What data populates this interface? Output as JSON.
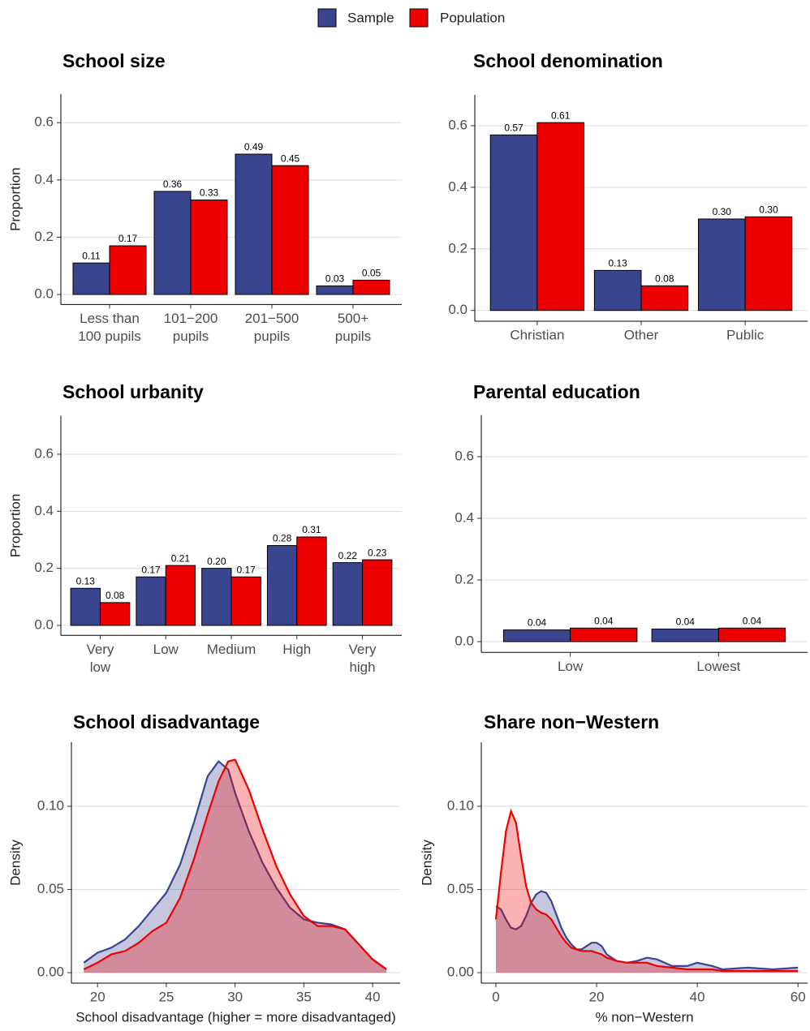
{
  "chart_data": [
    {
      "type": "bar",
      "title": "School size",
      "ylabel": "Proportion",
      "categories": [
        [
          "Less than",
          "100 pupils"
        ],
        [
          "101−200",
          "pupils"
        ],
        [
          "201−500",
          "pupils"
        ],
        [
          "500+",
          "pupils"
        ]
      ],
      "series": [
        {
          "name": "Sample",
          "color": "#3A4590",
          "values": [
            0.11,
            0.36,
            0.49,
            0.03
          ],
          "value_labels": [
            "0.11",
            "0.36",
            "0.49",
            "0.03"
          ]
        },
        {
          "name": "Population",
          "color": "#EE0000",
          "values": [
            0.17,
            0.33,
            0.45,
            0.05
          ],
          "value_labels": [
            "0.17",
            "0.33",
            "0.45",
            "0.05"
          ]
        }
      ],
      "ylim": [
        -0.035,
        0.7
      ],
      "yticks": [
        {
          "value": 0,
          "label": "0.0"
        },
        0.2,
        0.4,
        0.6
      ],
      "grid": true
    },
    {
      "type": "bar",
      "title": "School denomination",
      "categories": [
        [
          "Christian"
        ],
        [
          "Other"
        ],
        [
          "Public"
        ]
      ],
      "series": [
        {
          "name": "Sample",
          "color": "#3A4590",
          "values": [
            0.57,
            0.13,
            0.297
          ],
          "value_labels": [
            "0.57",
            "0.13",
            "0.30"
          ]
        },
        {
          "name": "Population",
          "color": "#EE0000",
          "values": [
            0.61,
            0.08,
            0.304
          ],
          "value_labels": [
            "0.61",
            "0.08",
            "0.30"
          ]
        }
      ],
      "ylim": [
        -0.035,
        0.7
      ],
      "yticks": [
        {
          "value": 0,
          "label": "0.0"
        },
        0.2,
        0.4,
        0.6
      ],
      "grid": true
    },
    {
      "type": "bar",
      "title": "School urbanity",
      "ylabel": "Proportion",
      "categories": [
        [
          "Very",
          "low"
        ],
        [
          "Low"
        ],
        [
          "Medium"
        ],
        [
          "High"
        ],
        [
          "Very",
          "high"
        ]
      ],
      "series": [
        {
          "name": "Sample",
          "color": "#3A4590",
          "values": [
            0.13,
            0.17,
            0.2,
            0.28,
            0.22
          ],
          "value_labels": [
            "0.13",
            "0.17",
            "0.20",
            "0.28",
            "0.22"
          ]
        },
        {
          "name": "Population",
          "color": "#EE0000",
          "values": [
            0.08,
            0.21,
            0.17,
            0.31,
            0.23
          ],
          "value_labels": [
            "0.08",
            "0.21",
            "0.17",
            "0.31",
            "0.23"
          ]
        }
      ],
      "ylim": [
        -0.035,
        0.735
      ],
      "yticks": [
        {
          "value": 0,
          "label": "0.0"
        },
        0.2,
        0.4,
        0.6
      ],
      "grid": true
    },
    {
      "type": "bar",
      "title": "Parental education",
      "categories": [
        [
          "Low"
        ],
        [
          "Lowest"
        ]
      ],
      "series": [
        {
          "name": "Sample",
          "color": "#3A4590",
          "values": [
            0.038,
            0.041
          ],
          "value_labels": [
            "0.04",
            "0.04"
          ]
        },
        {
          "name": "Population",
          "color": "#EE0000",
          "values": [
            0.044,
            0.044
          ],
          "value_labels": [
            "0.04",
            "0.04"
          ]
        }
      ],
      "ylim": [
        -0.035,
        0.735
      ],
      "yticks": [
        {
          "value": 0,
          "label": "0.0"
        },
        0.2,
        0.4,
        0.6
      ],
      "grid": true
    },
    {
      "type": "density",
      "title": "School disadvantage",
      "xlabel": "School disadvantage (higher = more disadvantaged)",
      "ylabel": "Density",
      "x": [
        19,
        20,
        21,
        22,
        23,
        24,
        25,
        26,
        27,
        28,
        28.8,
        29.5,
        30,
        31,
        32,
        33,
        34,
        35,
        36,
        37,
        38,
        39,
        40,
        41
      ],
      "series": [
        {
          "name": "Sample",
          "color": "#3A4590",
          "values": [
            0.006,
            0.012,
            0.015,
            0.02,
            0.028,
            0.038,
            0.048,
            0.065,
            0.09,
            0.118,
            0.127,
            0.122,
            0.108,
            0.085,
            0.066,
            0.051,
            0.039,
            0.032,
            0.03,
            0.029,
            0.026,
            0.017,
            0.008,
            0.002
          ]
        },
        {
          "name": "Population",
          "color": "#EE0000",
          "values": [
            0.002,
            0.006,
            0.011,
            0.013,
            0.018,
            0.025,
            0.03,
            0.045,
            0.068,
            0.095,
            0.115,
            0.127,
            0.128,
            0.11,
            0.086,
            0.064,
            0.047,
            0.034,
            0.028,
            0.028,
            0.026,
            0.017,
            0.008,
            0.002
          ]
        }
      ],
      "xlim": [
        18.1,
        42.0
      ],
      "xticks": [
        20,
        25,
        30,
        35,
        40
      ],
      "ylim": [
        -0.0063,
        0.1385
      ],
      "yticks": [
        {
          "value": 0,
          "label": "0.00"
        },
        {
          "value": 0.05,
          "label": "0.05"
        },
        {
          "value": 0.1,
          "label": "0.10"
        }
      ],
      "grid": true
    },
    {
      "type": "density",
      "title": "Share non−Western",
      "xlabel": "% non−Western",
      "ylabel": "Density",
      "x": [
        0,
        1,
        2,
        3,
        4,
        5,
        6,
        7,
        8,
        9,
        10,
        11,
        12,
        13,
        14,
        15,
        16,
        17,
        18,
        19,
        20,
        21,
        22,
        24,
        26,
        28,
        30,
        32,
        35,
        38,
        40,
        43,
        45,
        50,
        55,
        60
      ],
      "series": [
        {
          "name": "Sample",
          "color": "#3A4590",
          "values": [
            0.04,
            0.038,
            0.032,
            0.027,
            0.026,
            0.028,
            0.034,
            0.042,
            0.047,
            0.049,
            0.048,
            0.043,
            0.035,
            0.027,
            0.021,
            0.017,
            0.014,
            0.014,
            0.016,
            0.018,
            0.018,
            0.016,
            0.011,
            0.007,
            0.006,
            0.007,
            0.009,
            0.008,
            0.004,
            0.004,
            0.006,
            0.004,
            0.002,
            0.003,
            0.002,
            0.003
          ]
        },
        {
          "name": "Population",
          "color": "#EE0000",
          "values": [
            0.032,
            0.06,
            0.085,
            0.097,
            0.09,
            0.07,
            0.052,
            0.042,
            0.038,
            0.036,
            0.035,
            0.032,
            0.027,
            0.022,
            0.018,
            0.015,
            0.014,
            0.013,
            0.013,
            0.013,
            0.012,
            0.011,
            0.009,
            0.007,
            0.006,
            0.006,
            0.006,
            0.004,
            0.003,
            0.002,
            0.002,
            0.002,
            0.001,
            0.001,
            0.001,
            0.001
          ]
        }
      ],
      "xlim": [
        -2.9,
        61.9
      ],
      "xticks": [
        0,
        20,
        40,
        60
      ],
      "ylim": [
        -0.0063,
        0.1385
      ],
      "yticks": [
        {
          "value": 0,
          "label": "0.00"
        },
        {
          "value": 0.05,
          "label": "0.05"
        },
        {
          "value": 0.1,
          "label": "0.10"
        }
      ],
      "grid": true
    }
  ]
}
